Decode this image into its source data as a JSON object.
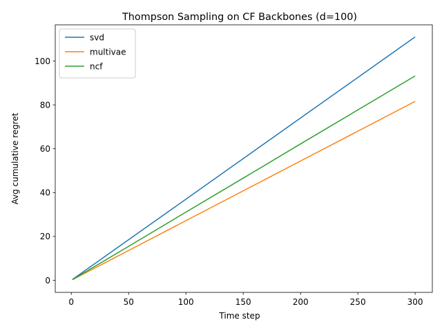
{
  "chart_data": {
    "type": "line",
    "title": "Thompson Sampling on CF Backbones (d=100)",
    "xlabel": "Time step",
    "ylabel": "Avg cumulative regret",
    "xlim": [
      -14,
      315
    ],
    "ylim": [
      -5.5,
      116.5
    ],
    "xticks": [
      0,
      50,
      100,
      150,
      200,
      250,
      300
    ],
    "yticks": [
      0,
      20,
      40,
      60,
      80,
      100
    ],
    "grid": false,
    "legend_position": "top-left",
    "series": [
      {
        "name": "svd",
        "color": "#1f77b4",
        "x": [
          1,
          50,
          100,
          150,
          200,
          250,
          300
        ],
        "y": [
          0.4,
          18.5,
          37.0,
          55.5,
          74.0,
          92.5,
          111.0
        ]
      },
      {
        "name": "multivae",
        "color": "#ff7f0e",
        "x": [
          1,
          50,
          100,
          150,
          200,
          250,
          300
        ],
        "y": [
          0.3,
          13.6,
          27.2,
          40.8,
          54.4,
          68.0,
          81.6
        ]
      },
      {
        "name": "ncf",
        "color": "#2ca02c",
        "x": [
          1,
          50,
          100,
          150,
          200,
          250,
          300
        ],
        "y": [
          0.3,
          15.5,
          31.1,
          46.6,
          62.2,
          77.7,
          93.2
        ]
      }
    ]
  }
}
